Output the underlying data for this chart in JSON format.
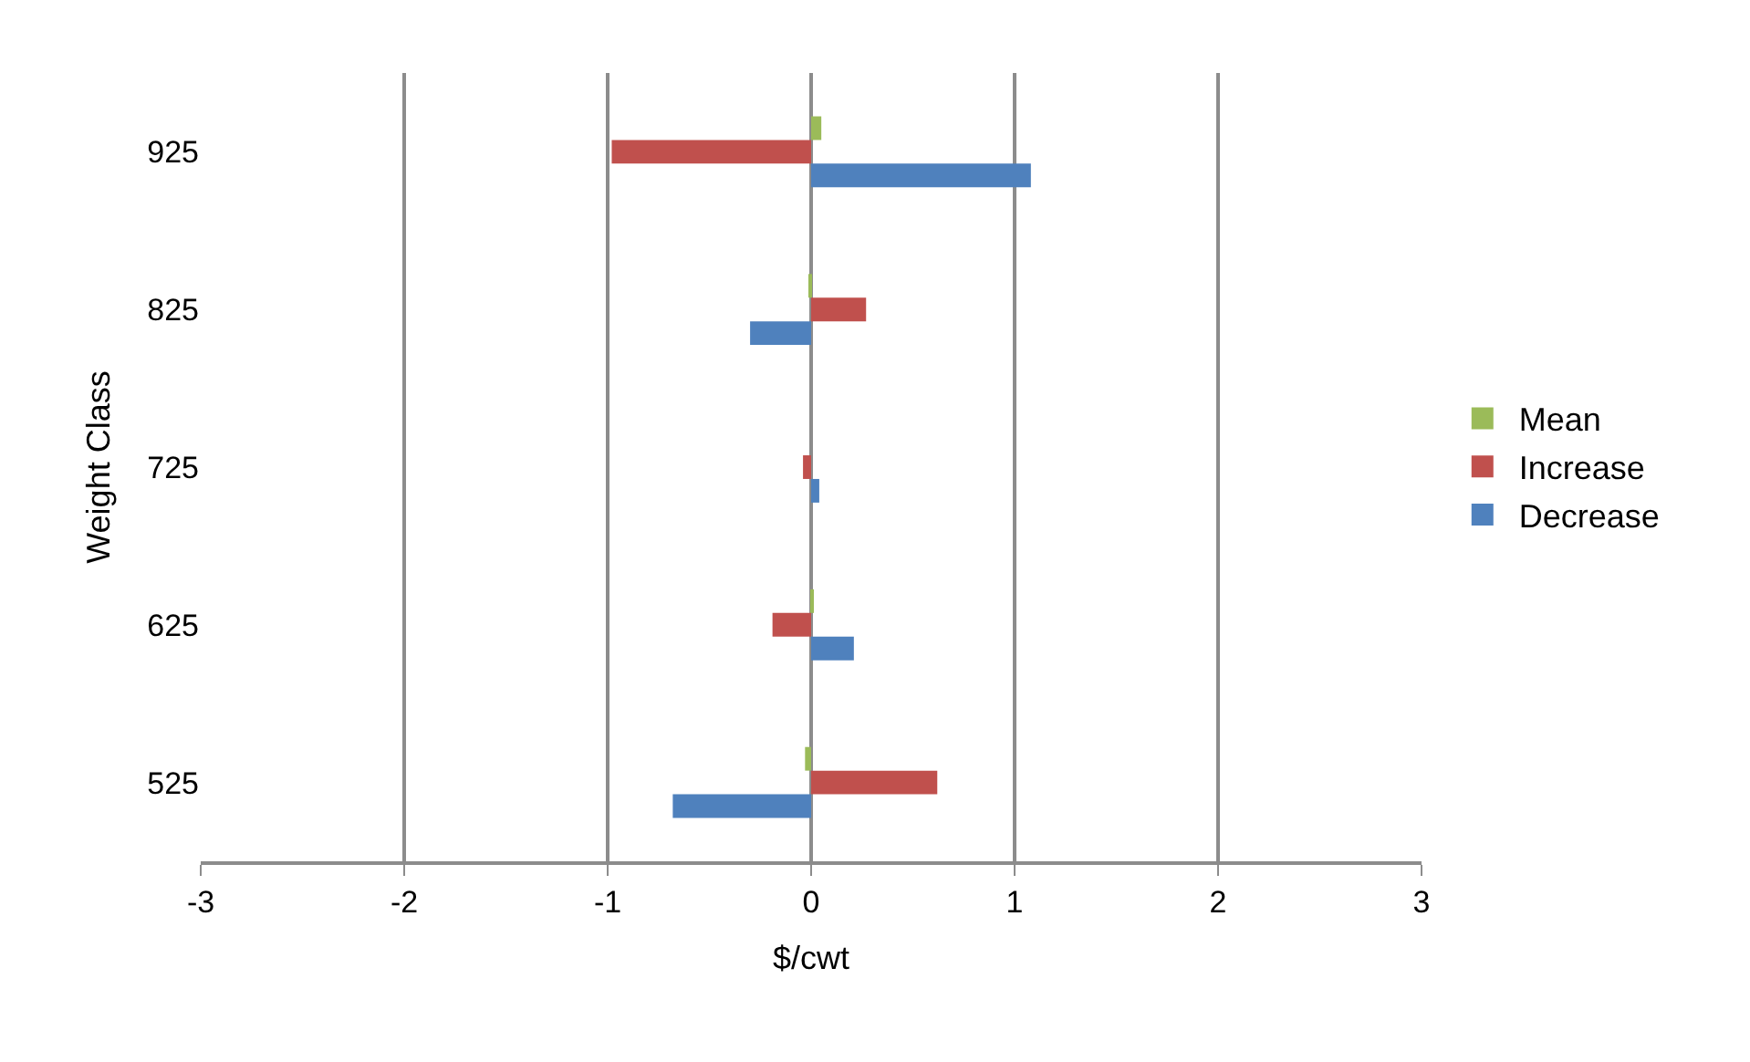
{
  "chart_data": {
    "type": "bar",
    "orientation": "horizontal",
    "xlabel": "$/cwt",
    "ylabel": "Weight Class",
    "categories": [
      "925",
      "825",
      "725",
      "625",
      "525"
    ],
    "series": [
      {
        "name": "Mean",
        "color": "#9bbb59",
        "values": [
          0.05,
          -0.01,
          0.0,
          0.01,
          -0.03
        ]
      },
      {
        "name": "Increase",
        "color": "#c0504d",
        "values": [
          -0.98,
          0.27,
          -0.04,
          -0.19,
          0.62
        ]
      },
      {
        "name": "Decrease",
        "color": "#4f81bd",
        "values": [
          1.08,
          -0.3,
          0.04,
          0.21,
          -0.68
        ]
      }
    ],
    "xlim": [
      -3,
      3
    ],
    "xticks": [
      -3,
      -2,
      -1,
      0,
      1,
      2,
      3
    ],
    "grid": "x",
    "legend": "right"
  }
}
